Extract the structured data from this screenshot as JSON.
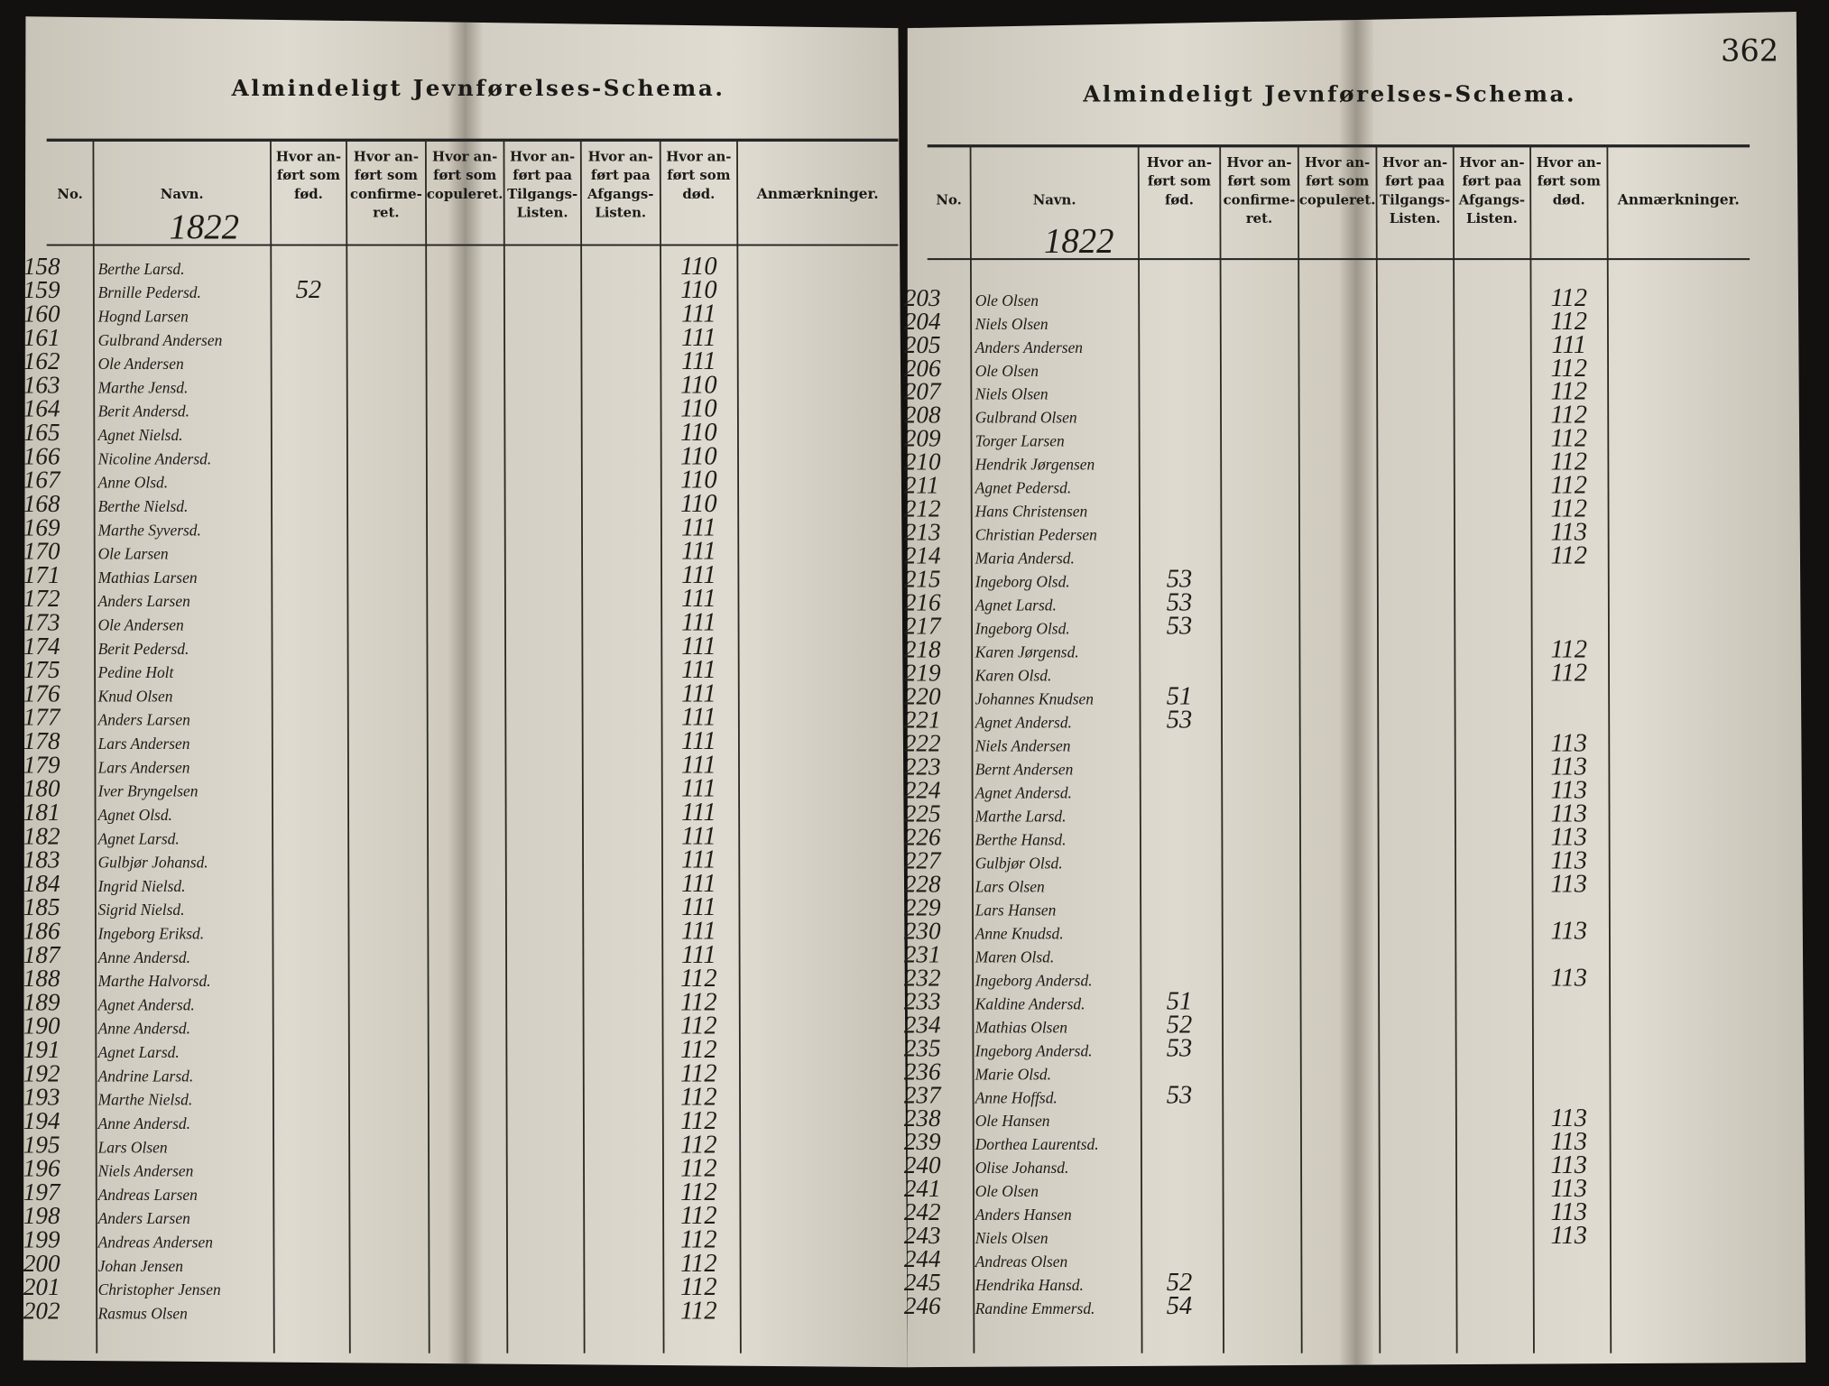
{
  "page_number": "362",
  "left": {
    "title": "Almindeligt Jevnførelses-Schema.",
    "year": "1822",
    "headers": [
      [
        "No."
      ],
      [
        "Navn."
      ],
      [
        "Hvor an-",
        "ført som",
        "fød."
      ],
      [
        "Hvor an-",
        "ført som",
        "confirme-",
        "ret."
      ],
      [
        "Hvor an-",
        "ført som",
        "copuleret."
      ],
      [
        "Hvor an-",
        "ført paa",
        "Tilgangs-",
        "Listen."
      ],
      [
        "Hvor an-",
        "ført paa",
        "Afgangs-",
        "Listen."
      ],
      [
        "Hvor an-",
        "ført som",
        "død."
      ],
      [
        "Anmærkninger."
      ]
    ],
    "rows": [
      {
        "no": "158",
        "name": "Berthe Larsd.",
        "dod": "110"
      },
      {
        "no": "159",
        "name": "Brnille Pedersd.",
        "fod": "52",
        "dod": "110"
      },
      {
        "no": "160",
        "name": "Hognd Larsen",
        "dod": "111"
      },
      {
        "no": "161",
        "name": "Gulbrand Andersen",
        "dod": "111"
      },
      {
        "no": "162",
        "name": "Ole Andersen",
        "dod": "111"
      },
      {
        "no": "163",
        "name": "Marthe Jensd.",
        "dod": "110"
      },
      {
        "no": "164",
        "name": "Berit Andersd.",
        "dod": "110"
      },
      {
        "no": "165",
        "name": "Agnet Nielsd.",
        "dod": "110"
      },
      {
        "no": "166",
        "name": "Nicoline Andersd.",
        "dod": "110"
      },
      {
        "no": "167",
        "name": "Anne Olsd.",
        "dod": "110"
      },
      {
        "no": "168",
        "name": "Berthe Nielsd.",
        "dod": "110"
      },
      {
        "no": "169",
        "name": "Marthe Syversd.",
        "dod": "111"
      },
      {
        "no": "170",
        "name": "Ole Larsen",
        "dod": "111"
      },
      {
        "no": "171",
        "name": "Mathias Larsen",
        "dod": "111"
      },
      {
        "no": "172",
        "name": "Anders Larsen",
        "dod": "111"
      },
      {
        "no": "173",
        "name": "Ole Andersen",
        "dod": "111"
      },
      {
        "no": "174",
        "name": "Berit Pedersd.",
        "dod": "111"
      },
      {
        "no": "175",
        "name": "Pedine Holt",
        "dod": "111"
      },
      {
        "no": "176",
        "name": "Knud Olsen",
        "dod": "111"
      },
      {
        "no": "177",
        "name": "Anders Larsen",
        "dod": "111"
      },
      {
        "no": "178",
        "name": "Lars Andersen",
        "dod": "111"
      },
      {
        "no": "179",
        "name": "Lars Andersen",
        "dod": "111"
      },
      {
        "no": "180",
        "name": "Iver Bryngelsen",
        "dod": "111"
      },
      {
        "no": "181",
        "name": "Agnet Olsd.",
        "dod": "111"
      },
      {
        "no": "182",
        "name": "Agnet Larsd.",
        "dod": "111"
      },
      {
        "no": "183",
        "name": "Gulbjør Johansd.",
        "dod": "111"
      },
      {
        "no": "184",
        "name": "Ingrid Nielsd.",
        "dod": "111"
      },
      {
        "no": "185",
        "name": "Sigrid Nielsd.",
        "dod": "111"
      },
      {
        "no": "186",
        "name": "Ingeborg Eriksd.",
        "dod": "111"
      },
      {
        "no": "187",
        "name": "Anne Andersd.",
        "dod": "111"
      },
      {
        "no": "188",
        "name": "Marthe Halvorsd.",
        "dod": "112"
      },
      {
        "no": "189",
        "name": "Agnet Andersd.",
        "dod": "112"
      },
      {
        "no": "190",
        "name": "Anne Andersd.",
        "dod": "112"
      },
      {
        "no": "191",
        "name": "Agnet Larsd.",
        "dod": "112"
      },
      {
        "no": "192",
        "name": "Andrine Larsd.",
        "dod": "112"
      },
      {
        "no": "193",
        "name": "Marthe Nielsd.",
        "dod": "112"
      },
      {
        "no": "194",
        "name": "Anne Andersd.",
        "dod": "112"
      },
      {
        "no": "195",
        "name": "Lars Olsen",
        "dod": "112"
      },
      {
        "no": "196",
        "name": "Niels Andersen",
        "dod": "112"
      },
      {
        "no": "197",
        "name": "Andreas Larsen",
        "dod": "112"
      },
      {
        "no": "198",
        "name": "Anders Larsen",
        "dod": "112"
      },
      {
        "no": "199",
        "name": "Andreas Andersen",
        "dod": "112"
      },
      {
        "no": "200",
        "name": "Johan Jensen",
        "dod": "112"
      },
      {
        "no": "201",
        "name": "Christopher Jensen",
        "dod": "112"
      },
      {
        "no": "202",
        "name": "Rasmus Olsen",
        "dod": "112"
      }
    ]
  },
  "right": {
    "title": "Almindeligt Jevnførelses-Schema.",
    "year": "1822",
    "headers": [
      [
        "No."
      ],
      [
        "Navn."
      ],
      [
        "Hvor an-",
        "ført som",
        "fød."
      ],
      [
        "Hvor an-",
        "ført som",
        "confirme-",
        "ret."
      ],
      [
        "Hvor an-",
        "ført som",
        "copuleret."
      ],
      [
        "Hvor an-",
        "ført paa",
        "Tilgangs-",
        "Listen."
      ],
      [
        "Hvor an-",
        "ført paa",
        "Afgangs-",
        "Listen."
      ],
      [
        "Hvor an-",
        "ført som",
        "død."
      ],
      [
        "Anmærkninger."
      ]
    ],
    "rows": [
      {
        "no": "203",
        "name": "Ole Olsen",
        "dod": "112"
      },
      {
        "no": "204",
        "name": "Niels Olsen",
        "dod": "112"
      },
      {
        "no": "205",
        "name": "Anders Andersen",
        "dod": "111"
      },
      {
        "no": "206",
        "name": "Ole Olsen",
        "dod": "112"
      },
      {
        "no": "207",
        "name": "Niels Olsen",
        "dod": "112"
      },
      {
        "no": "208",
        "name": "Gulbrand Olsen",
        "dod": "112"
      },
      {
        "no": "209",
        "name": "Torger Larsen",
        "dod": "112"
      },
      {
        "no": "210",
        "name": "Hendrik Jørgensen",
        "dod": "112"
      },
      {
        "no": "211",
        "name": "Agnet Pedersd.",
        "dod": "112"
      },
      {
        "no": "212",
        "name": "Hans Christensen",
        "dod": "112"
      },
      {
        "no": "213",
        "name": "Christian Pedersen",
        "dod": "113"
      },
      {
        "no": "214",
        "name": "Maria Andersd.",
        "dod": "112"
      },
      {
        "no": "215",
        "name": "Ingeborg Olsd.",
        "fod": "53"
      },
      {
        "no": "216",
        "name": "Agnet Larsd.",
        "fod": "53"
      },
      {
        "no": "217",
        "name": "Ingeborg Olsd.",
        "fod": "53"
      },
      {
        "no": "218",
        "name": "Karen Jørgensd.",
        "dod": "112"
      },
      {
        "no": "219",
        "name": "Karen Olsd.",
        "dod": "112"
      },
      {
        "no": "220",
        "name": "Johannes Knudsen",
        "fod": "51"
      },
      {
        "no": "221",
        "name": "Agnet Andersd.",
        "fod": "53"
      },
      {
        "no": "222",
        "name": "Niels Andersen",
        "dod": "113"
      },
      {
        "no": "223",
        "name": "Bernt Andersen",
        "dod": "113"
      },
      {
        "no": "224",
        "name": "Agnet Andersd.",
        "dod": "113"
      },
      {
        "no": "225",
        "name": "Marthe Larsd.",
        "dod": "113"
      },
      {
        "no": "226",
        "name": "Berthe Hansd.",
        "dod": "113"
      },
      {
        "no": "227",
        "name": "Gulbjør Olsd.",
        "dod": "113"
      },
      {
        "no": "228",
        "name": "Lars Olsen",
        "dod": "113"
      },
      {
        "no": "229",
        "name": "Lars Hansen"
      },
      {
        "no": "230",
        "name": "Anne Knudsd.",
        "dod": "113"
      },
      {
        "no": "231",
        "name": "Maren Olsd."
      },
      {
        "no": "232",
        "name": "Ingeborg Andersd.",
        "dod": "113"
      },
      {
        "no": "233",
        "name": "Kaldine Andersd.",
        "fod": "51"
      },
      {
        "no": "234",
        "name": "Mathias Olsen",
        "fod": "52"
      },
      {
        "no": "235",
        "name": "Ingeborg Andersd.",
        "fod": "53"
      },
      {
        "no": "236",
        "name": "Marie Olsd."
      },
      {
        "no": "237",
        "name": "Anne Hoffsd.",
        "fod": "53"
      },
      {
        "no": "238",
        "name": "Ole Hansen",
        "dod": "113"
      },
      {
        "no": "239",
        "name": "Dorthea Laurentsd.",
        "dod": "113"
      },
      {
        "no": "240",
        "name": "Olise Johansd.",
        "dod": "113"
      },
      {
        "no": "241",
        "name": "Ole Olsen",
        "dod": "113"
      },
      {
        "no": "242",
        "name": "Anders Hansen",
        "dod": "113"
      },
      {
        "no": "243",
        "name": "Niels Olsen",
        "dod": "113"
      },
      {
        "no": "244",
        "name": "Andreas Olsen"
      },
      {
        "no": "245",
        "name": "Hendrika Hansd.",
        "fod": "52"
      },
      {
        "no": "246",
        "name": "Randine Emmersd.",
        "fod": "54"
      }
    ]
  }
}
